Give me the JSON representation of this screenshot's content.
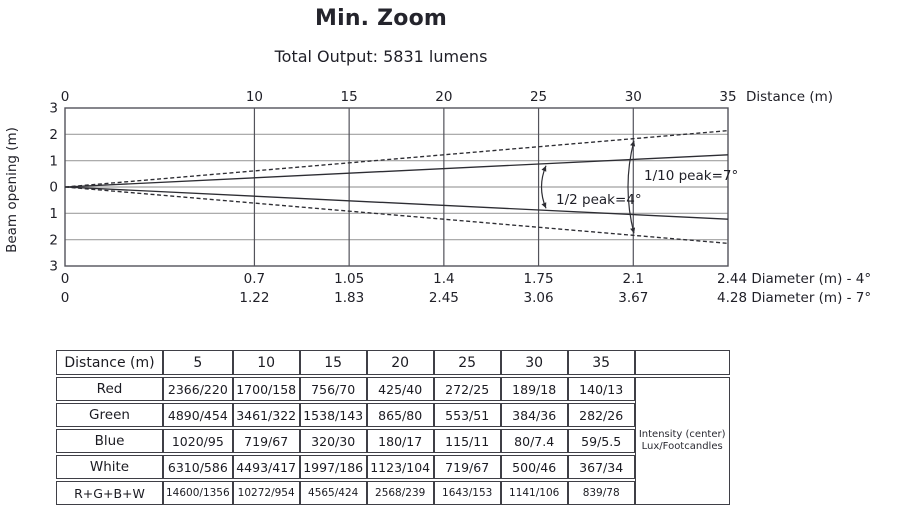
{
  "chart_data": {
    "type": "line",
    "title": "Min. Zoom",
    "subtitle": "Total Output: 5831 lumens",
    "x_axis": {
      "title": "Distance (m)",
      "ticks": [
        0,
        10,
        15,
        20,
        25,
        30,
        35
      ],
      "max": 35
    },
    "y_axis": {
      "title": "Beam opening (m)",
      "ticks_abs": [
        3,
        2,
        1,
        0,
        1,
        2,
        3
      ],
      "max_abs": 3
    },
    "beams": [
      {
        "id": "half-peak",
        "annotation": "1/2 peak=4°",
        "full_angle_deg": 4,
        "line_style": "solid",
        "diameter_axis": {
          "values": [
            "0",
            "0.7",
            "1.05",
            "1.4",
            "1.75",
            "2.1",
            "2.44"
          ],
          "suffix": "Diameter (m) - 4°"
        }
      },
      {
        "id": "tenth-peak",
        "annotation": "1/10 peak=7°",
        "full_angle_deg": 7,
        "line_style": "dashed",
        "diameter_axis": {
          "values": [
            "0",
            "1.22",
            "1.83",
            "2.45",
            "3.06",
            "3.67",
            "4.28"
          ],
          "suffix": "Diameter (m) - 7°"
        }
      }
    ],
    "colors": {
      "background": "#ffffff",
      "text": "#1f1f27",
      "grid": "#a0a0a0",
      "axis": "#53535b",
      "beam": "#2d2d33"
    }
  },
  "table": {
    "header": [
      "Distance (m)",
      "5",
      "10",
      "15",
      "20",
      "25",
      "30",
      "35"
    ],
    "rows": [
      {
        "label": "Red",
        "values": [
          "2366/220",
          "1700/158",
          "756/70",
          "425/40",
          "272/25",
          "189/18",
          "140/13"
        ]
      },
      {
        "label": "Green",
        "values": [
          "4890/454",
          "3461/322",
          "1538/143",
          "865/80",
          "553/51",
          "384/36",
          "282/26"
        ]
      },
      {
        "label": "Blue",
        "values": [
          "1020/95",
          "719/67",
          "320/30",
          "180/17",
          "115/11",
          "80/7.4",
          "59/5.5"
        ]
      },
      {
        "label": "White",
        "values": [
          "6310/586",
          "4493/417",
          "1997/186",
          "1123/104",
          "719/67",
          "500/46",
          "367/34"
        ]
      },
      {
        "label": "R+G+B+W",
        "values": [
          "14600/1356",
          "10272/954",
          "4565/424",
          "2568/239",
          "1643/153",
          "1141/106",
          "839/78"
        ]
      }
    ],
    "note_lines": [
      "Intensity (center)",
      "Lux/Footcandles"
    ]
  }
}
